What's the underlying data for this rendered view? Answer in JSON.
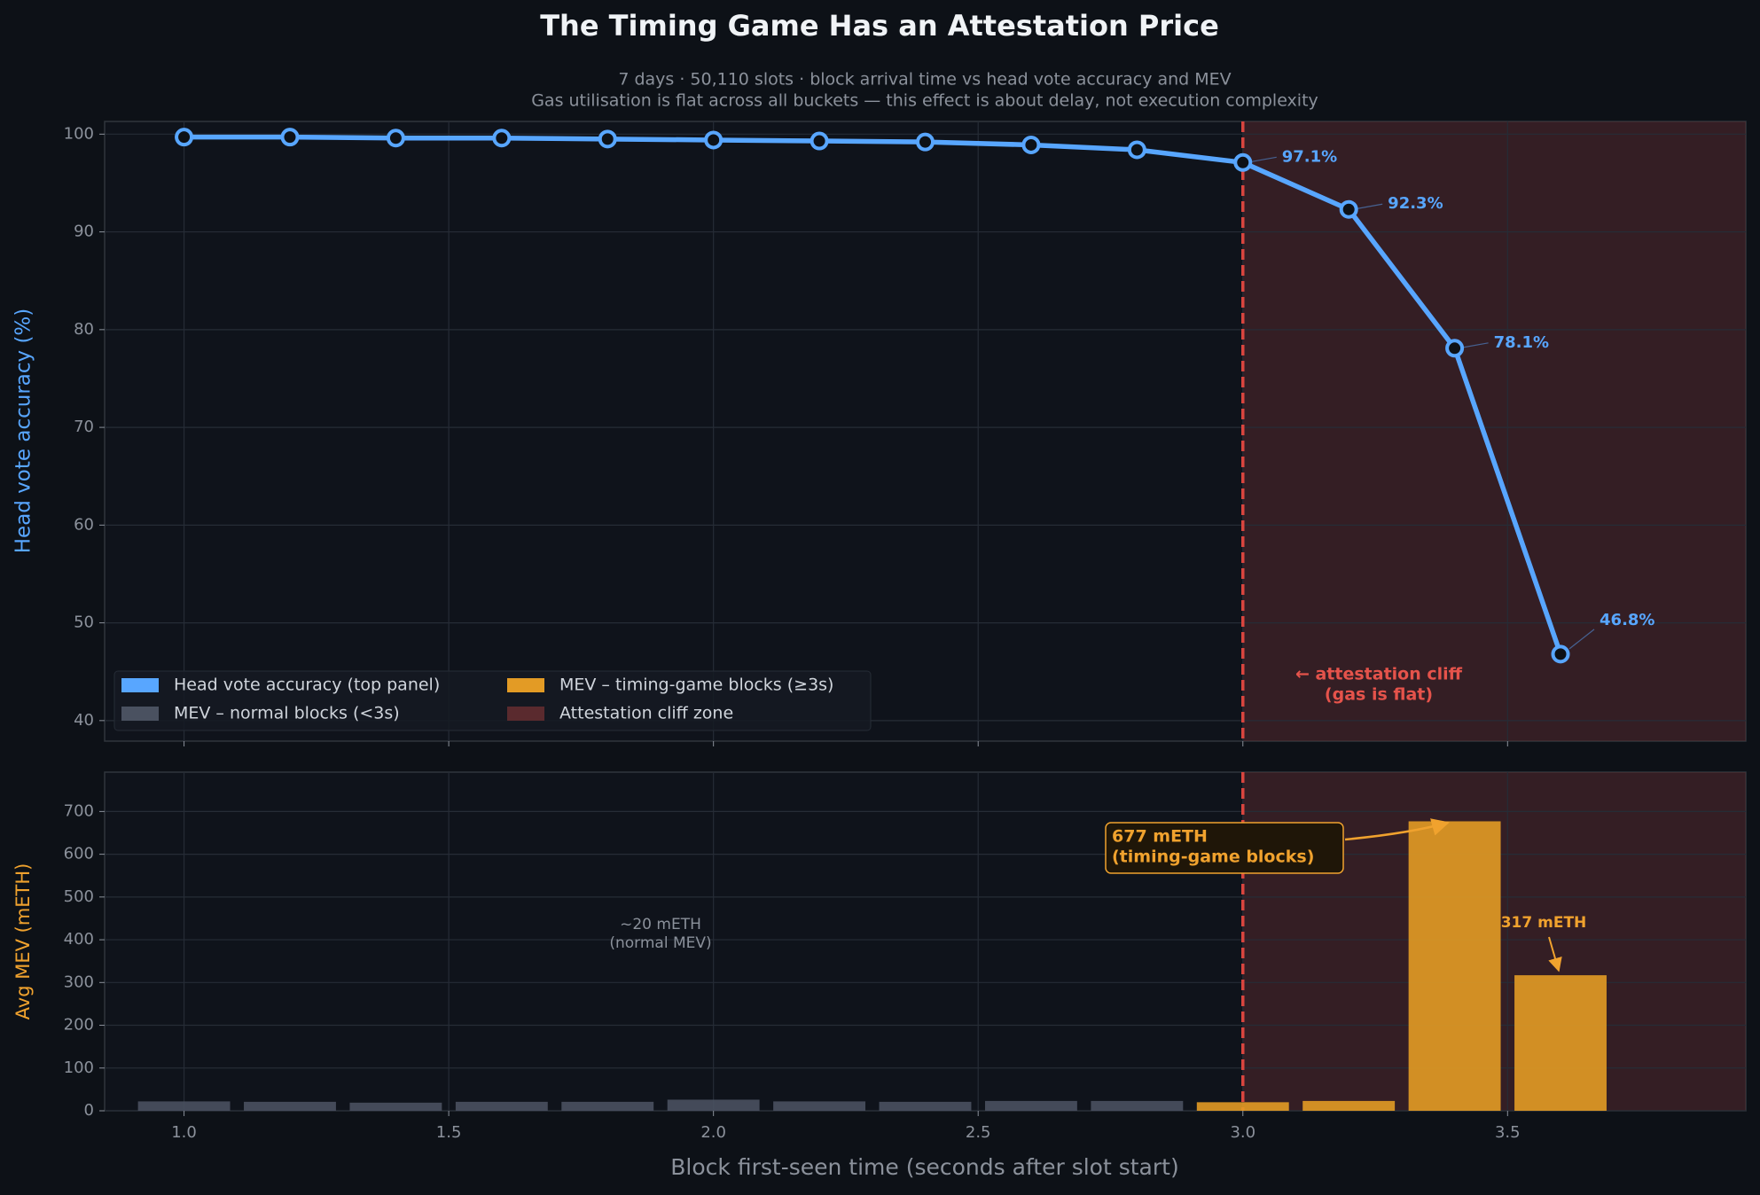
{
  "chart_data": [
    {
      "type": "line",
      "title": "The Timing Game Has an Attestation Price",
      "subtitle": [
        "7 days  ·  50,110 slots  ·  block arrival time vs head vote accuracy and MEV",
        "Gas utilisation is flat across all buckets — this effect is about delay, not execution complexity"
      ],
      "ylabel": "Head vote accuracy (%)",
      "x": [
        1.0,
        1.2,
        1.4,
        1.6,
        1.8,
        2.0,
        2.2,
        2.4,
        2.6,
        2.8,
        3.0,
        3.2,
        3.4,
        3.6
      ],
      "series": [
        {
          "name": "Head vote accuracy (top panel)",
          "color": "#58a6ff",
          "values": [
            99.7,
            99.7,
            99.6,
            99.6,
            99.5,
            99.4,
            99.3,
            99.2,
            98.9,
            98.4,
            97.1,
            92.3,
            78.1,
            46.8
          ],
          "value_labels": [
            null,
            null,
            null,
            null,
            null,
            null,
            null,
            null,
            null,
            null,
            "97.1%",
            "92.3%",
            "78.1%",
            "46.8%"
          ]
        }
      ],
      "xlim": [
        0.85,
        3.95
      ],
      "xticks": [
        1,
        1.5,
        2,
        2.5,
        3,
        3.5
      ],
      "ylim": [
        37.9,
        101.3
      ],
      "yticks": [
        40,
        50,
        60,
        70,
        80,
        90,
        100
      ],
      "grid": true,
      "legend": "lower left",
      "cliff": {
        "name": "Attestation cliff zone",
        "x": 3.0,
        "color": "#5a2a2e",
        "line_color": "#d9453f"
      },
      "annotations": [
        {
          "lines": [
            "← attestation cliff",
            "(gas is flat)"
          ],
          "color": "#e5534b"
        }
      ]
    },
    {
      "type": "bar",
      "ylabel": "Avg MEV (mETH)",
      "xlabel": "Block first-seen time  (seconds after slot start)",
      "x": [
        1.0,
        1.2,
        1.4,
        1.6,
        1.8,
        2.0,
        2.2,
        2.4,
        2.6,
        2.8,
        3.0,
        3.2,
        3.4,
        3.6
      ],
      "series": [
        {
          "name": "MEV – normal blocks (<3s)",
          "color": "#4a5160",
          "values": [
            22,
            21,
            19,
            21,
            21,
            26,
            22,
            21,
            23,
            23,
            null,
            null,
            null,
            null
          ]
        },
        {
          "name": "MEV – timing-game blocks (≥3s)",
          "color": "#e39b25",
          "values": [
            null,
            null,
            null,
            null,
            null,
            null,
            null,
            null,
            null,
            null,
            20,
            23,
            677,
            317
          ]
        }
      ],
      "xlim": [
        0.85,
        3.95
      ],
      "xticks": [
        {
          "value": 1,
          "label": "1.0"
        },
        {
          "value": 1.5,
          "label": "1.5"
        },
        {
          "value": 2,
          "label": "2.0"
        },
        {
          "value": 2.5,
          "label": "2.5"
        },
        {
          "value": 3,
          "label": "3.0"
        },
        {
          "value": 3.5,
          "label": "3.5"
        }
      ],
      "ylim": [
        0,
        792
      ],
      "yticks": [
        0,
        100,
        200,
        300,
        400,
        500,
        600,
        700
      ],
      "grid": true,
      "annotations": [
        {
          "lines": [
            "677 mETH",
            "(timing-game blocks)"
          ],
          "color": "#f0a22e"
        },
        {
          "lines": [
            "317 mETH"
          ],
          "color": "#f0a22e"
        },
        {
          "lines": [
            "~20 mETH",
            "(normal MEV)"
          ],
          "color": "#8b919b"
        }
      ]
    }
  ]
}
